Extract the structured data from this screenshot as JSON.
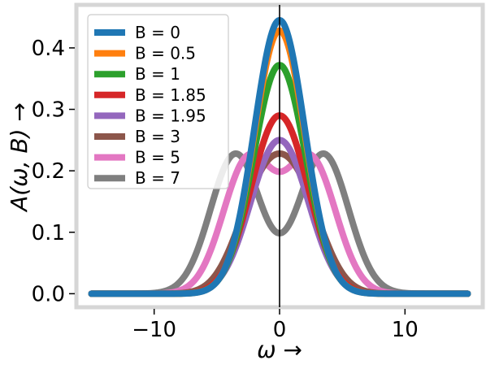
{
  "chart_data": {
    "type": "line",
    "xlabel": "ω →",
    "ylabel": "A(ω, B) →",
    "xlim": [
      -16.2,
      16.2
    ],
    "ylim": [
      -0.022,
      0.47
    ],
    "x_ticks": [
      -10,
      0,
      10
    ],
    "x_tick_labels": [
      "−10",
      "0",
      "10"
    ],
    "y_ticks": [
      0.0,
      0.1,
      0.2,
      0.3,
      0.4
    ],
    "y_tick_labels": [
      "0.0",
      "0.1",
      "0.2",
      "0.3",
      "0.4"
    ],
    "grid": false,
    "legend_position": "top-left",
    "vertical_reference_line_x": 0,
    "x_range": [
      -15,
      15
    ],
    "series": [
      {
        "name": "B = 0",
        "B": 0,
        "color": "#1f77b4",
        "peak_y": 0.445
      },
      {
        "name": "B = 0.5",
        "B": 0.5,
        "color": "#ff7f0e",
        "peak_y": 0.428
      },
      {
        "name": "B = 1",
        "B": 1,
        "color": "#2ca02c",
        "peak_y": 0.372
      },
      {
        "name": "B = 1.85",
        "B": 1.85,
        "color": "#d62728",
        "peak_y": 0.29
      },
      {
        "name": "B = 1.95",
        "B": 1.95,
        "color": "#9467bd",
        "peak_y": 0.25
      },
      {
        "name": "B = 3",
        "B": 3,
        "color": "#8c564b",
        "peak_y": 0.228
      },
      {
        "name": "B = 5",
        "B": 5,
        "color": "#e377c2",
        "peak_y": 0.228
      },
      {
        "name": "B = 7",
        "B": 7,
        "color": "#7f7f7f",
        "peak_y": 0.228
      }
    ]
  }
}
